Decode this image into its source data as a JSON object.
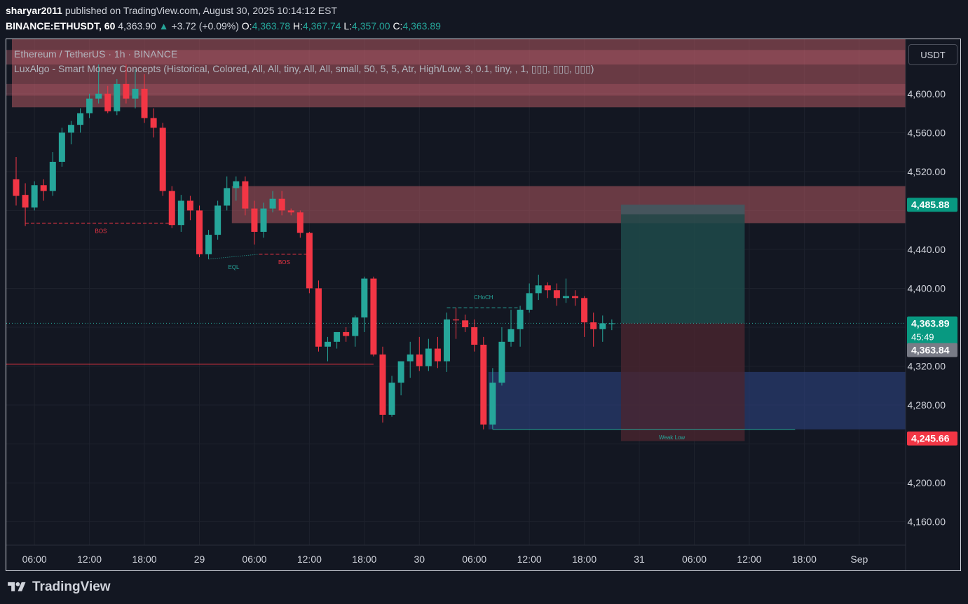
{
  "header": {
    "user": "sharyar2011",
    "published": "published on TradingView.com, August 30, 2025 10:14:12 EST",
    "symbol": "BINANCE:ETHUSDT, 60",
    "last": "4,363.90",
    "change": "+3.72 (+0.09%)",
    "o_label": "O:",
    "o_value": "4,363.78",
    "h_label": "H:",
    "h_value": "4,367.74",
    "l_label": "L:",
    "l_value": "4,357.00",
    "c_label": "C:",
    "c_value": "4,363.89"
  },
  "legend": {
    "title": "Ethereum / TetherUS · 1h · BINANCE",
    "indicator": "LuxAlgo - Smart Money Concepts (Historical, Colored, All, All, tiny, All, All, small, 50, 5, 5, Atr, High/Low, 3, 0.1, tiny, , 1, ▯▯▯, ▯▯▯, ▯▯▯)"
  },
  "currency_button": "USDT",
  "footer": {
    "brand": "TradingView"
  },
  "colors": {
    "background": "#131722",
    "up": "#26a69a",
    "down": "#f23645",
    "axis_text": "#d1d4dc",
    "supply_zone": "#b05760",
    "demand_zone": "#2b3f7a",
    "position_profit": "#1f4a4a",
    "position_loss": "#4a2530"
  },
  "chart_data": {
    "type": "candlestick",
    "y_axis": {
      "ticks": [
        4160,
        4200,
        4240,
        4280,
        4320,
        4360,
        4400,
        4440,
        4480,
        4520,
        4560,
        4600
      ],
      "tick_labels": [
        "4,160.00",
        "4,200.00",
        "",
        "4,280.00",
        "4,320.00",
        "",
        "4,400.00",
        "4,440.00",
        "",
        "4,520.00",
        "4,560.00",
        "4,600.00"
      ],
      "range": [
        4136,
        4656
      ]
    },
    "x_axis": {
      "bar_range": [
        0,
        94
      ],
      "labels": [
        {
          "bar": 2,
          "text": "06:00"
        },
        {
          "bar": 8,
          "text": "12:00"
        },
        {
          "bar": 14,
          "text": "18:00"
        },
        {
          "bar": 20,
          "text": "29"
        },
        {
          "bar": 26,
          "text": "06:00"
        },
        {
          "bar": 32,
          "text": "12:00"
        },
        {
          "bar": 38,
          "text": "18:00"
        },
        {
          "bar": 44,
          "text": "30"
        },
        {
          "bar": 50,
          "text": "06:00"
        },
        {
          "bar": 56,
          "text": "12:00"
        },
        {
          "bar": 62,
          "text": "18:00"
        },
        {
          "bar": 68,
          "text": "31"
        },
        {
          "bar": 74,
          "text": "06:00"
        },
        {
          "bar": 80,
          "text": "12:00"
        },
        {
          "bar": 86,
          "text": "18:00"
        },
        {
          "bar": 92,
          "text": "Sep"
        }
      ]
    },
    "candles": [
      [
        4512,
        4535,
        4485,
        4495
      ],
      [
        4496,
        4508,
        4464,
        4483
      ],
      [
        4483,
        4510,
        4480,
        4506
      ],
      [
        4506,
        4512,
        4490,
        4500
      ],
      [
        4500,
        4540,
        4495,
        4530
      ],
      [
        4530,
        4565,
        4525,
        4560
      ],
      [
        4560,
        4572,
        4548,
        4568
      ],
      [
        4568,
        4585,
        4560,
        4580
      ],
      [
        4580,
        4600,
        4575,
        4595
      ],
      [
        4595,
        4630,
        4590,
        4600
      ],
      [
        4600,
        4608,
        4580,
        4582
      ],
      [
        4582,
        4615,
        4578,
        4610
      ],
      [
        4610,
        4630,
        4590,
        4595
      ],
      [
        4595,
        4625,
        4585,
        4605
      ],
      [
        4605,
        4620,
        4570,
        4575
      ],
      [
        4575,
        4585,
        4555,
        4565
      ],
      [
        4565,
        4570,
        4495,
        4500
      ],
      [
        4500,
        4505,
        4462,
        4465
      ],
      [
        4465,
        4496,
        4458,
        4490
      ],
      [
        4490,
        4495,
        4470,
        4480
      ],
      [
        4480,
        4485,
        4432,
        4435
      ],
      [
        4435,
        4460,
        4430,
        4455
      ],
      [
        4455,
        4490,
        4450,
        4485
      ],
      [
        4485,
        4515,
        4480,
        4503
      ],
      [
        4503,
        4515,
        4490,
        4510
      ],
      [
        4510,
        4515,
        4475,
        4482
      ],
      [
        4482,
        4490,
        4445,
        4458
      ],
      [
        4458,
        4488,
        4452,
        4482
      ],
      [
        4482,
        4500,
        4478,
        4492
      ],
      [
        4492,
        4500,
        4475,
        4480
      ],
      [
        4480,
        4482,
        4475,
        4478
      ],
      [
        4478,
        4480,
        4452,
        4457
      ],
      [
        4457,
        4458,
        4395,
        4400
      ],
      [
        4400,
        4408,
        4335,
        4340
      ],
      [
        4340,
        4350,
        4325,
        4345
      ],
      [
        4345,
        4350,
        4338,
        4355
      ],
      [
        4355,
        4360,
        4345,
        4351
      ],
      [
        4351,
        4372,
        4340,
        4370
      ],
      [
        4370,
        4412,
        4355,
        4410
      ],
      [
        4410,
        4412,
        4330,
        4332
      ],
      [
        4332,
        4340,
        4262,
        4270
      ],
      [
        4270,
        4310,
        4268,
        4303
      ],
      [
        4303,
        4322,
        4290,
        4325
      ],
      [
        4325,
        4345,
        4308,
        4332
      ],
      [
        4332,
        4350,
        4315,
        4320
      ],
      [
        4320,
        4348,
        4315,
        4338
      ],
      [
        4338,
        4350,
        4318,
        4325
      ],
      [
        4325,
        4375,
        4314,
        4368
      ],
      [
        4368,
        4380,
        4348,
        4367
      ],
      [
        4367,
        4373,
        4355,
        4360
      ],
      [
        4360,
        4368,
        4335,
        4342
      ],
      [
        4342,
        4350,
        4255,
        4260
      ],
      [
        4260,
        4318,
        4255,
        4303
      ],
      [
        4303,
        4360,
        4300,
        4345
      ],
      [
        4345,
        4378,
        4340,
        4358
      ],
      [
        4358,
        4382,
        4340,
        4378
      ],
      [
        4378,
        4405,
        4375,
        4395
      ],
      [
        4395,
        4414,
        4388,
        4403
      ],
      [
        4403,
        4406,
        4390,
        4398
      ],
      [
        4398,
        4405,
        4382,
        4390
      ],
      [
        4390,
        4410,
        4385,
        4392
      ],
      [
        4392,
        4398,
        4382,
        4390
      ],
      [
        4390,
        4392,
        4350,
        4365
      ],
      [
        4365,
        4375,
        4340,
        4358
      ],
      [
        4358,
        4372,
        4345,
        4364
      ],
      [
        4364,
        4368,
        4357,
        4364
      ]
    ],
    "zones": [
      {
        "type": "supply",
        "from_bar": 0,
        "to_bar": 80,
        "top": 4658,
        "bottom": 4586
      },
      {
        "type": "supply",
        "from_bar": 24,
        "to_bar": 80,
        "top": 4505,
        "bottom": 4467
      },
      {
        "type": "demand",
        "from_bar": 52,
        "to_bar": 80,
        "top": 4314,
        "bottom": 4255
      }
    ],
    "position": {
      "from_bar": 66,
      "to_bar": 79.5,
      "entry": 4364,
      "target": 4486,
      "stop": 4243
    },
    "structure_lines": [
      {
        "label": "BOS",
        "y": 4467,
        "from": 1,
        "to": 17.5,
        "color": "#f23645",
        "style": "dashed"
      },
      {
        "label": "BOS",
        "y": 4435,
        "from": 26.5,
        "to": 32,
        "color": "#f23645",
        "style": "dashed"
      },
      {
        "label": "EQL",
        "y": 4430,
        "y2": 4435,
        "from": 21,
        "to": 26.5,
        "color": "#26a69a",
        "style": "dotted"
      },
      {
        "label": "CHoCH",
        "y": 4380,
        "from": 47,
        "to": 55,
        "color": "#26a69a",
        "style": "dashed"
      },
      {
        "label": "Weak Low",
        "y": 4255,
        "from": 52,
        "to": 85,
        "color": "#26a69a",
        "style": "solid"
      }
    ],
    "red_level": {
      "y": 4322,
      "from": 0,
      "to": 39
    },
    "current_price_line": 4364,
    "price_tags": [
      {
        "value": 4485.88,
        "text": "4,485.88",
        "sub": "",
        "color": "#089981"
      },
      {
        "value": 4363.89,
        "text": "4,363.89",
        "sub": "45:49",
        "color": "#089981"
      },
      {
        "value": 4363.84,
        "text": "4,363.84",
        "sub": "",
        "color": "#787b86"
      },
      {
        "value": 4245.66,
        "text": "4,245.66",
        "sub": "",
        "color": "#f23645"
      }
    ]
  }
}
